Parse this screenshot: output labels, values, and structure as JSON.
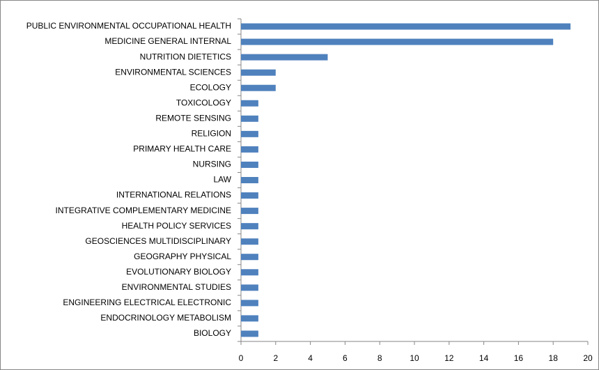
{
  "chart_data": {
    "type": "bar",
    "orientation": "horizontal",
    "categories": [
      "PUBLIC ENVIRONMENTAL OCCUPATIONAL HEALTH",
      "MEDICINE GENERAL INTERNAL",
      "NUTRITION DIETETICS",
      "ENVIRONMENTAL SCIENCES",
      "ECOLOGY",
      "TOXICOLOGY",
      "REMOTE SENSING",
      "RELIGION",
      "PRIMARY HEALTH CARE",
      "NURSING",
      "LAW",
      "INTERNATIONAL RELATIONS",
      "INTEGRATIVE COMPLEMENTARY MEDICINE",
      "HEALTH POLICY SERVICES",
      "GEOSCIENCES MULTIDISCIPLINARY",
      "GEOGRAPHY PHYSICAL",
      "EVOLUTIONARY BIOLOGY",
      "ENVIRONMENTAL STUDIES",
      "ENGINEERING ELECTRICAL ELECTRONIC",
      "ENDOCRINOLOGY METABOLISM",
      "BIOLOGY"
    ],
    "values": [
      19,
      18,
      5,
      2,
      2,
      1,
      1,
      1,
      1,
      1,
      1,
      1,
      1,
      1,
      1,
      1,
      1,
      1,
      1,
      1,
      1
    ],
    "color": "#4f81bd",
    "xlim": [
      0,
      20
    ],
    "xticks": [
      0,
      2,
      4,
      6,
      8,
      10,
      12,
      14,
      16,
      18,
      20
    ],
    "grid": false
  }
}
